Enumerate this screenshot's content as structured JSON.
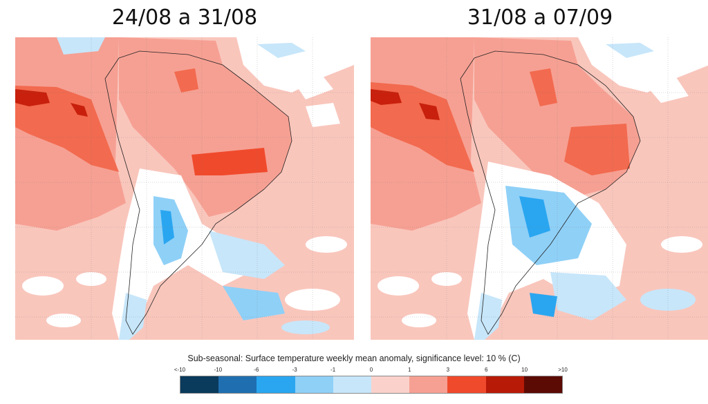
{
  "panels": [
    {
      "title": "24/08 a 31/08"
    },
    {
      "title": "31/08 a 07/09"
    }
  ],
  "caption": "Sub-seasonal: Surface temperature weekly mean anomaly, significance level: 10 % (C)",
  "colorbar": {
    "labels": [
      "<-10",
      "-10",
      "-6",
      "-3",
      "-1",
      "0",
      "1",
      "3",
      "6",
      "10",
      ">10"
    ],
    "colors": [
      "#0a3a5c",
      "#1f6fb0",
      "#2aa6f0",
      "#8fd0f7",
      "#c7e6fa",
      "#ffffff",
      "#fbd2cb",
      "#f6a093",
      "#f04a2c",
      "#b81a08",
      "#5c0a04"
    ]
  }
}
